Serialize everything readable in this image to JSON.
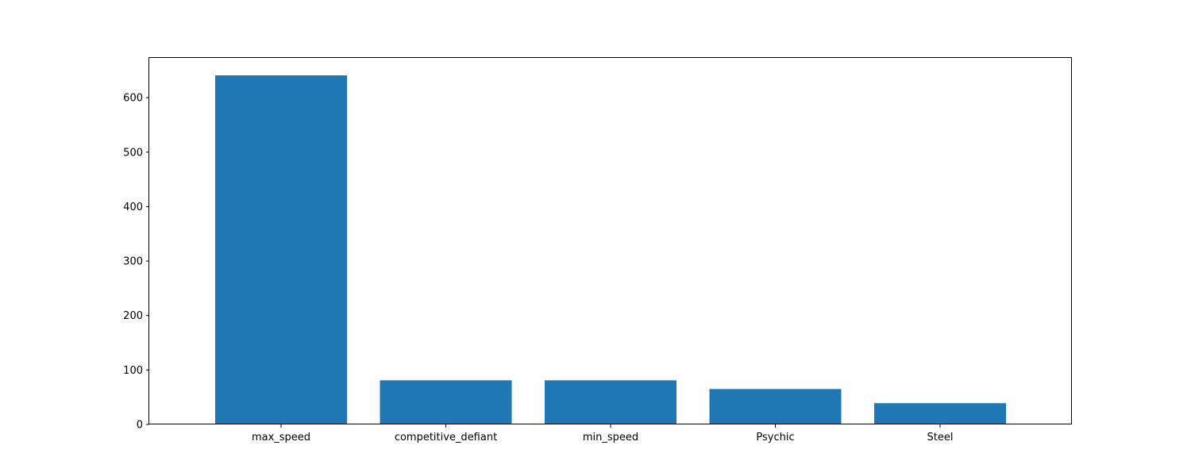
{
  "chart_data": {
    "type": "bar",
    "title": "",
    "xlabel": "",
    "ylabel": "",
    "categories": [
      "max_speed",
      "competitive_defiant",
      "min_speed",
      "Psychic",
      "Steel"
    ],
    "values": [
      641,
      81,
      81,
      65,
      39
    ],
    "ylim": [
      0,
      673
    ],
    "yticks": [
      0,
      100,
      200,
      300,
      400,
      500,
      600
    ],
    "grid": false,
    "bar_color": "#1f77b4"
  }
}
